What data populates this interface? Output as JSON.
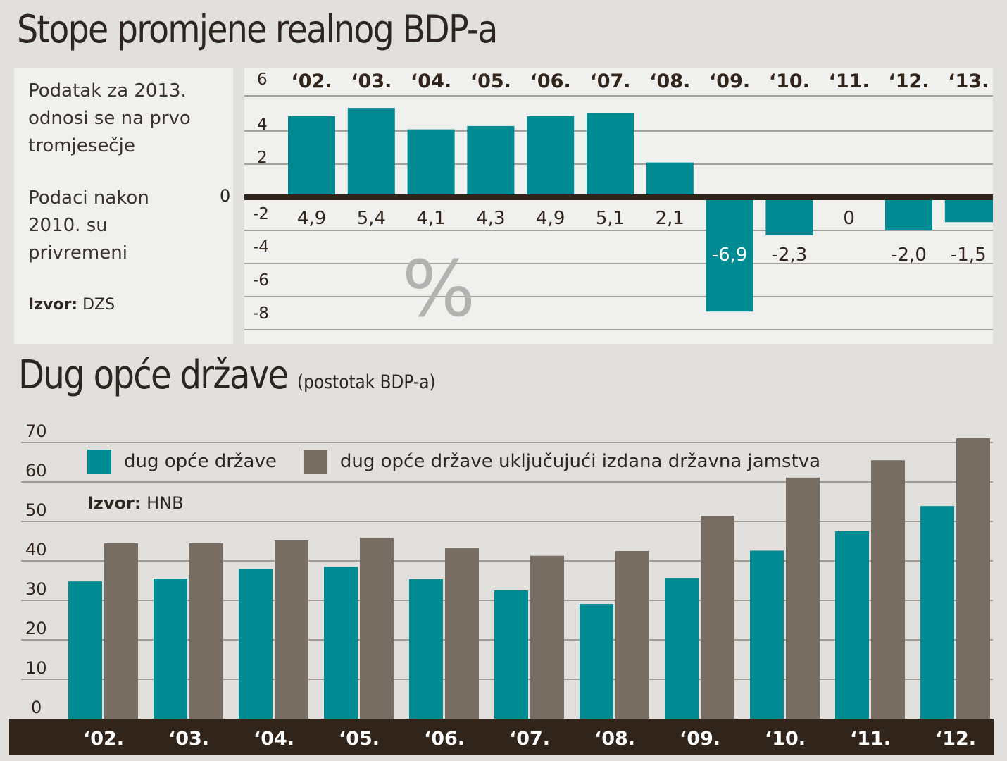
{
  "colors": {
    "teal": "#008a91",
    "gray": "#776d63",
    "dark": "#30241b",
    "grid": "#8a8580",
    "panel": "#f0f0ef",
    "bg": "#e2e0dd"
  },
  "top": {
    "title": "Stope promjene realnog BDP-a",
    "notes": [
      "Podatak za 2013. odnosi se na prvo tromjesečje",
      "Podaci nakon 2010. su privremeni"
    ],
    "source_label": "Izvor:",
    "source_value": "DZS",
    "zero_label": "0",
    "watermark": "%"
  },
  "bottom": {
    "title": "Dug opće države",
    "subtitle": "(postotak BDP-a)",
    "source_label": "Izvor:",
    "source_value": "HNB"
  },
  "chart_data": [
    {
      "type": "bar",
      "title": "Stope promjene realnog BDP-a",
      "xlabel": "",
      "ylabel": "%",
      "categories": [
        "‘02.",
        "‘03.",
        "‘04.",
        "‘05.",
        "‘06.",
        "‘07.",
        "‘08.",
        "‘09.",
        "‘10.",
        "‘11.",
        "‘12.",
        "‘13."
      ],
      "values": [
        4.9,
        5.4,
        4.1,
        4.3,
        4.9,
        5.1,
        2.1,
        -6.9,
        -2.3,
        0,
        -2.0,
        -1.5
      ],
      "data_labels": [
        "4,9",
        "5,4",
        "4,1",
        "4,3",
        "4,9",
        "5,1",
        "2,1",
        "-6,9",
        "-2,3",
        "0",
        "-2,0",
        "-1,5"
      ],
      "yticks": [
        6,
        4,
        2,
        -2,
        -4,
        -6,
        -8
      ],
      "ylim": [
        -8.5,
        6
      ],
      "grid": true
    },
    {
      "type": "bar",
      "title": "Dug opće države (postotak BDP-a)",
      "xlabel": "",
      "ylabel": "",
      "categories": [
        "‘02.",
        "‘03.",
        "‘04.",
        "‘05.",
        "‘06.",
        "‘07.",
        "‘08.",
        "‘09.",
        "‘10.",
        "‘11.",
        "‘12."
      ],
      "series": [
        {
          "name": "dug opće države",
          "color": "#008a91",
          "values": [
            34.8,
            35.5,
            37.9,
            38.5,
            35.4,
            32.5,
            29.1,
            35.7,
            42.6,
            47.5,
            53.9
          ]
        },
        {
          "name": "dug opće države uključujući izdana državna jamstva",
          "color": "#776d63",
          "values": [
            44.5,
            44.5,
            45.2,
            45.9,
            43.2,
            41.3,
            42.5,
            51.4,
            61.1,
            65.5,
            71.1
          ]
        }
      ],
      "yticks": [
        0,
        10,
        20,
        30,
        40,
        50,
        60,
        70
      ],
      "ylim": [
        0,
        72
      ],
      "legend": "top-left",
      "grid": true
    }
  ]
}
